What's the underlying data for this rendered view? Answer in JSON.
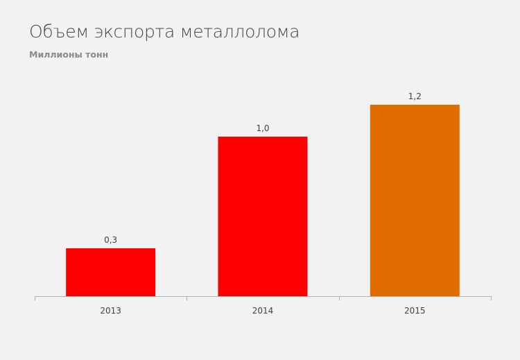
{
  "chart_data": {
    "type": "bar",
    "title": "Объем экспорта металлолома",
    "subtitle": "Миллионы тонн",
    "xlabel": "",
    "ylabel": "",
    "categories": [
      "2013",
      "2014",
      "2015"
    ],
    "values": [
      0.3,
      1.0,
      1.2
    ],
    "data_labels": [
      "0,3",
      "1,0",
      "1,2"
    ],
    "colors": [
      "#ff0000",
      "#ff0000",
      "#e06c00"
    ],
    "ylim": [
      0,
      1.2
    ],
    "grid": false,
    "legend": "none",
    "axis_color": "#b0b0b0",
    "background": "#f2f2f2"
  }
}
